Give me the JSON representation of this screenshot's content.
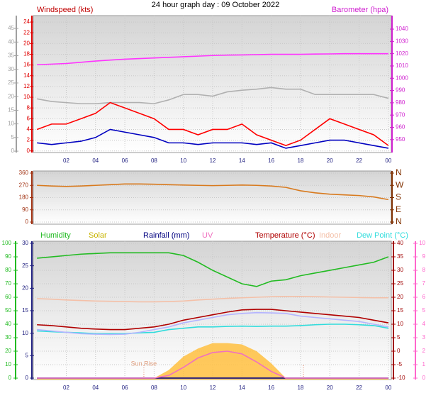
{
  "chart_data": [
    {
      "type": "line",
      "title": "24 hour graph day : 09 October 2022",
      "ylabel": "Windspeed (kts)",
      "y2label": "Barometer (hpa)",
      "x": [
        0,
        1,
        2,
        3,
        4,
        5,
        6,
        7,
        8,
        9,
        10,
        11,
        12,
        13,
        14,
        15,
        16,
        17,
        18,
        19,
        20,
        21,
        22,
        23,
        24
      ],
      "xlim": [
        -0.25,
        24.2
      ],
      "xticks": [
        {
          "value": 2,
          "label": "02"
        },
        {
          "value": 4,
          "label": "04"
        },
        {
          "value": 6,
          "label": "06"
        },
        {
          "value": 8,
          "label": "08"
        },
        10,
        12,
        14,
        16,
        18,
        20,
        22,
        {
          "value": 24,
          "label": "00"
        }
      ],
      "ylim": [
        -0.3,
        25.2
      ],
      "yticks": [
        0,
        2,
        4,
        6,
        8,
        10,
        12,
        14,
        16,
        18,
        20,
        22,
        24
      ],
      "y3lim": [
        -0.5,
        49.7
      ],
      "y3ticks": [
        0,
        5,
        10,
        15,
        20,
        25,
        30,
        35,
        40,
        45
      ],
      "y2lim": [
        939.5,
        1051
      ],
      "y2ticks": [
        950,
        960,
        970,
        980,
        990,
        1000,
        1010,
        1020,
        1030,
        1040
      ],
      "axis_colors": {
        "y": "#e00000",
        "y3": "#a0a0a0",
        "y2": "#d020d0"
      },
      "grid": true,
      "series": [
        {
          "color": "#b0b0b0",
          "axis": "y",
          "values": [
            9.7,
            9.2,
            9,
            8.8,
            8.8,
            9,
            9,
            9,
            8.8,
            9.5,
            10.5,
            10.5,
            10.2,
            11,
            11.3,
            11.5,
            11.8,
            11.5,
            11.5,
            10.5,
            10.5,
            10.5,
            10.5,
            10.5,
            9.8
          ]
        },
        {
          "color": "#ff0000",
          "axis": "y",
          "values": [
            4,
            5,
            5,
            6,
            7,
            9,
            8,
            7,
            6,
            4,
            4,
            3,
            4,
            4,
            5,
            3,
            2,
            1,
            2,
            4,
            6,
            5,
            4,
            3,
            1
          ]
        },
        {
          "color": "#0000c0",
          "axis": "y",
          "values": [
            1.5,
            1.2,
            1.5,
            1.8,
            2.5,
            4,
            3.5,
            3,
            2.5,
            1.5,
            1.5,
            1.2,
            1.5,
            1.5,
            1.5,
            1.2,
            1.5,
            0.5,
            1,
            1.5,
            2,
            2,
            1.5,
            1,
            0.5
          ]
        },
        {
          "color": "#ff33ff",
          "axis": "y2",
          "values": [
            1011,
            1011.5,
            1012,
            1013,
            1014,
            1014.8,
            1015.5,
            1016,
            1016.5,
            1017,
            1017.5,
            1018,
            1018.5,
            1018.8,
            1019,
            1019.2,
            1019.5,
            1019.5,
            1019.5,
            1019.7,
            1019.8,
            1020,
            1020,
            1020,
            1020
          ]
        }
      ]
    },
    {
      "type": "line",
      "x": [
        0,
        1,
        2,
        3,
        4,
        5,
        6,
        7,
        8,
        9,
        10,
        11,
        12,
        13,
        14,
        15,
        16,
        17,
        18,
        19,
        20,
        21,
        22,
        23,
        24
      ],
      "xlim": [
        -0.25,
        24.2
      ],
      "ylim": [
        -15.6,
        375.6
      ],
      "yticks": [
        0,
        90,
        180,
        270,
        360
      ],
      "y2lim": [
        -15.6,
        375.6
      ],
      "y2ticks": [
        {
          "value": 0,
          "label": "N"
        },
        {
          "value": 90,
          "label": "E"
        },
        {
          "value": 180,
          "label": "S"
        },
        {
          "value": 270,
          "label": "W"
        },
        {
          "value": 360,
          "label": "N"
        }
      ],
      "axis_colors": {
        "y": "#a03010",
        "y2": "#803000"
      },
      "grid": true,
      "series": [
        {
          "color": "#d87a1e",
          "axis": "y",
          "values": [
            270,
            265,
            262,
            265,
            270,
            275,
            280,
            280,
            278,
            275,
            272,
            270,
            268,
            270,
            272,
            270,
            265,
            255,
            230,
            215,
            205,
            200,
            195,
            185,
            165
          ]
        }
      ]
    },
    {
      "type": "line",
      "x": [
        0,
        1,
        2,
        3,
        4,
        5,
        6,
        7,
        8,
        9,
        10,
        11,
        12,
        13,
        14,
        15,
        16,
        17,
        18,
        19,
        20,
        21,
        22,
        23,
        24
      ],
      "xlim": [
        -0.25,
        24.2
      ],
      "xticks": [
        {
          "value": 2,
          "label": "02"
        },
        {
          "value": 4,
          "label": "04"
        },
        {
          "value": 6,
          "label": "06"
        },
        {
          "value": 8,
          "label": "08"
        },
        10,
        12,
        14,
        16,
        18,
        20,
        22,
        {
          "value": 24,
          "label": "00"
        }
      ],
      "ylim": [
        -1.05,
        101.6
      ],
      "yticks": [
        0,
        10,
        20,
        30,
        40,
        50,
        60,
        70,
        80,
        90,
        100
      ],
      "y3lim": [
        -0.32,
        30.47
      ],
      "y3ticks": [
        0,
        5,
        10,
        15,
        20,
        25,
        30
      ],
      "y2lim": [
        -10.53,
        40.79
      ],
      "y2ticks": [
        -10,
        -5,
        0,
        5,
        10,
        15,
        20,
        25,
        30,
        35,
        40
      ],
      "y4lim": [
        -0.105,
        10.16
      ],
      "y4ticks": [
        0,
        1,
        2,
        3,
        4,
        5,
        6,
        7,
        8,
        9,
        10
      ],
      "y5lim": [
        -1.05,
        101.6
      ],
      "axis_colors": {
        "y": "#22bb22",
        "y3": "#202080",
        "y2": "#a00000",
        "y4": "#ff66cc"
      },
      "grid": true,
      "sunrise": 7.3,
      "sunset": 18.2,
      "annotations": [
        {
          "text": "Sun Rise",
          "x": 7.3
        }
      ],
      "series": [
        {
          "name": "Humidity",
          "color": "#22bb22",
          "axis": "y",
          "values": [
            89,
            90,
            91,
            92,
            92.5,
            93,
            93,
            93,
            93,
            93,
            91,
            86,
            80,
            75,
            70,
            68,
            72,
            73,
            76,
            78,
            80,
            82,
            84,
            86,
            90
          ]
        },
        {
          "name": "Solar",
          "color": "#c8b400",
          "fill": "#ffc040",
          "axis": "y5",
          "values": [
            0,
            0,
            0,
            0,
            0,
            0,
            0,
            0,
            0,
            6,
            16,
            22,
            26,
            26,
            25,
            20,
            11,
            0,
            0,
            0,
            0,
            0,
            0,
            0,
            0
          ]
        },
        {
          "name": "Rainfall (mm)",
          "color": "#000080",
          "axis": "y3",
          "values": [
            0,
            0,
            0,
            0,
            0,
            0,
            0,
            0,
            0,
            0,
            0,
            0,
            0,
            0,
            0,
            0,
            0,
            0,
            0,
            0,
            0,
            0,
            0,
            0,
            0
          ]
        },
        {
          "name": "UV",
          "color": "#f070c0",
          "axis": "y4",
          "values": [
            0,
            0,
            0,
            0,
            0,
            0,
            0,
            0,
            0,
            0.2,
            0.8,
            1.5,
            1.9,
            2,
            1.8,
            1.2,
            0.5,
            0,
            0,
            0,
            0,
            0,
            0,
            0,
            0
          ]
        },
        {
          "name": "Temperature (°C)",
          "color": "#b00000",
          "axis": "y2",
          "values": [
            9.8,
            9.5,
            9,
            8.5,
            8.2,
            8,
            8,
            8.5,
            9,
            10,
            11.5,
            12.5,
            13.5,
            14.5,
            15.3,
            15.5,
            15.5,
            15,
            14.5,
            14,
            13.5,
            13,
            12.5,
            11.5,
            10.5
          ]
        },
        {
          "name": "Indoor",
          "color": "#f4c0a8",
          "axis": "y2",
          "values": [
            19.5,
            19.3,
            19,
            18.8,
            18.6,
            18.5,
            18.4,
            18.3,
            18.3,
            18.4,
            18.6,
            19,
            19.3,
            19.6,
            19.8,
            20,
            20.2,
            20.3,
            20.3,
            20.2,
            20.1,
            20,
            19.9,
            19.8,
            19.8
          ]
        },
        {
          "name": "Dew Point (°C)",
          "color": "#30dcdc",
          "axis": "y2",
          "values": [
            7.5,
            7.2,
            7,
            6.8,
            6.5,
            6.5,
            6.5,
            6.8,
            7,
            8,
            8.5,
            9,
            9,
            9.2,
            9.3,
            9.2,
            9.3,
            9.3,
            9.5,
            9.8,
            10,
            10,
            9.8,
            9.5,
            8.5
          ]
        },
        {
          "color": "#b4b4ff",
          "axis": "y2",
          "values": [
            8,
            7.5,
            7,
            6.5,
            6.3,
            6.2,
            6.3,
            7,
            8,
            9,
            10.5,
            11.5,
            12.5,
            13.5,
            14,
            14.3,
            14.2,
            14,
            13,
            12.5,
            12,
            11.5,
            11,
            10,
            9
          ]
        }
      ]
    }
  ]
}
